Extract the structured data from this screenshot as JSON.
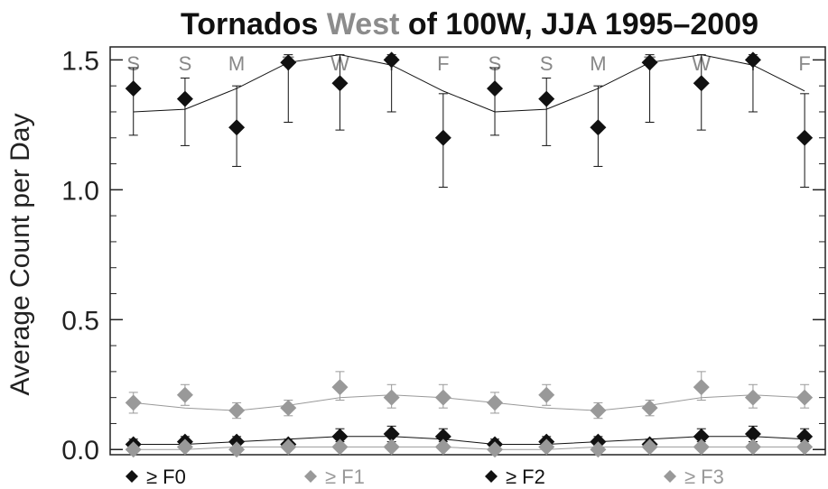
{
  "chart_data": {
    "type": "scatter",
    "title": {
      "part1": "Tornados ",
      "part2": "West",
      "part3": " of 100W, JJA 1995–2009"
    },
    "ylabel": "Average Count per Day",
    "xlabel": "",
    "ylim": [
      -0.02,
      1.55
    ],
    "yticks": [
      0.0,
      0.5,
      1.0,
      1.5
    ],
    "ytick_labels": [
      "0.0",
      "0.5",
      "1.0",
      "1.5"
    ],
    "x": [
      1,
      2,
      3,
      4,
      5,
      6,
      7,
      8,
      9,
      10,
      11,
      12,
      13,
      14
    ],
    "day_labels": [
      "S",
      "S",
      "M",
      "T",
      "W",
      "T",
      "F",
      "S",
      "S",
      "M",
      "T",
      "W",
      "T",
      "F"
    ],
    "grid": false,
    "legend_placement": "bottom",
    "series": [
      {
        "name": "≥ F0",
        "color": "#111111",
        "values": [
          1.39,
          1.35,
          1.24,
          1.49,
          1.41,
          1.5,
          1.2,
          1.39,
          1.35,
          1.24,
          1.49,
          1.41,
          1.5,
          1.2
        ],
        "err_low": [
          1.21,
          1.17,
          1.09,
          1.26,
          1.23,
          1.3,
          1.01,
          1.21,
          1.17,
          1.09,
          1.26,
          1.23,
          1.3,
          1.01
        ],
        "err_high": [
          1.47,
          1.43,
          1.4,
          1.52,
          1.52,
          1.52,
          1.37,
          1.47,
          1.43,
          1.4,
          1.52,
          1.52,
          1.52,
          1.37
        ],
        "fit": [
          1.3,
          1.31,
          1.39,
          1.49,
          1.52,
          1.48,
          1.38,
          1.3,
          1.31,
          1.39,
          1.49,
          1.52,
          1.48,
          1.38
        ]
      },
      {
        "name": "≥ F1",
        "color": "#999999",
        "values": [
          0.18,
          0.21,
          0.15,
          0.16,
          0.24,
          0.2,
          0.2,
          0.18,
          0.21,
          0.15,
          0.16,
          0.24,
          0.2,
          0.2
        ],
        "err_low": [
          0.14,
          0.17,
          0.12,
          0.13,
          0.19,
          0.16,
          0.16,
          0.14,
          0.17,
          0.12,
          0.13,
          0.19,
          0.16,
          0.16
        ],
        "err_high": [
          0.22,
          0.25,
          0.18,
          0.19,
          0.3,
          0.25,
          0.25,
          0.22,
          0.25,
          0.18,
          0.19,
          0.3,
          0.25,
          0.25
        ],
        "fit": [
          0.18,
          0.16,
          0.15,
          0.17,
          0.2,
          0.21,
          0.2,
          0.18,
          0.16,
          0.15,
          0.17,
          0.2,
          0.21,
          0.2
        ]
      },
      {
        "name": "≥ F2",
        "color": "#111111",
        "values": [
          0.02,
          0.03,
          0.03,
          0.02,
          0.05,
          0.06,
          0.05,
          0.02,
          0.03,
          0.03,
          0.02,
          0.05,
          0.06,
          0.05
        ],
        "err_low": [
          0.0,
          0.01,
          0.01,
          0.0,
          0.03,
          0.03,
          0.03,
          0.0,
          0.01,
          0.01,
          0.0,
          0.03,
          0.03,
          0.03
        ],
        "err_high": [
          0.04,
          0.05,
          0.05,
          0.04,
          0.08,
          0.09,
          0.08,
          0.04,
          0.05,
          0.05,
          0.04,
          0.08,
          0.09,
          0.08
        ],
        "fit": [
          0.02,
          0.02,
          0.03,
          0.04,
          0.05,
          0.05,
          0.04,
          0.02,
          0.02,
          0.03,
          0.04,
          0.05,
          0.05,
          0.04
        ]
      },
      {
        "name": "≥ F3",
        "color": "#999999",
        "values": [
          0.0,
          0.01,
          0.0,
          0.01,
          0.01,
          0.01,
          0.01,
          0.0,
          0.01,
          0.0,
          0.01,
          0.01,
          0.01,
          0.01
        ],
        "err_low": [
          0.0,
          0.0,
          0.0,
          0.0,
          0.0,
          0.0,
          0.0,
          0.0,
          0.0,
          0.0,
          0.0,
          0.0,
          0.0,
          0.0
        ],
        "err_high": [
          0.01,
          0.02,
          0.01,
          0.02,
          0.02,
          0.02,
          0.02,
          0.01,
          0.02,
          0.01,
          0.02,
          0.02,
          0.02,
          0.02
        ],
        "fit": [
          0.0,
          0.0,
          0.01,
          0.01,
          0.01,
          0.01,
          0.01,
          0.0,
          0.0,
          0.01,
          0.01,
          0.01,
          0.01,
          0.01
        ]
      }
    ]
  },
  "colors": {
    "title_accent": "#8c8c8c",
    "axis": "#222222"
  }
}
